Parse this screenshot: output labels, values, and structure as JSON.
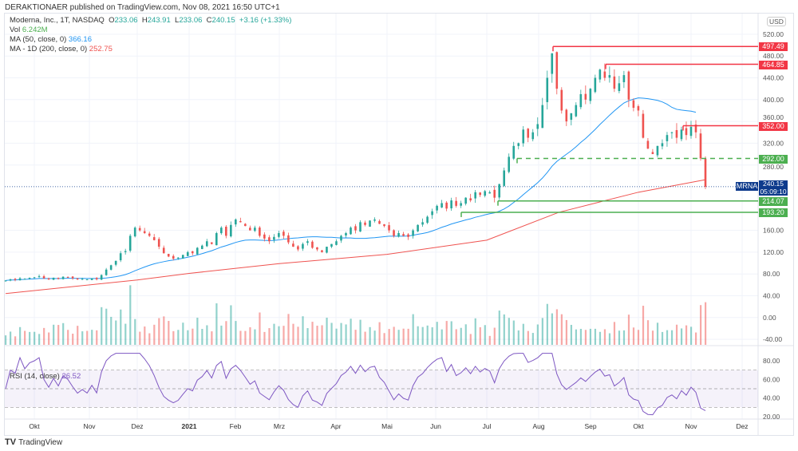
{
  "header": {
    "published": "DERAKTIONAER published on TradingView.com, Nov 08, 2021 16:50 UTC+1"
  },
  "legend": {
    "symbol": "Moderna, Inc., 1T, NASDAQ",
    "o_label": "O",
    "o": "233.06",
    "h_label": "H",
    "h": "243.91",
    "l_label": "L",
    "l": "233.06",
    "c_label": "C",
    "c": "240.15",
    "chg": "+3.16 (+1.33%)",
    "vol_label": "Vol",
    "vol": "6.242M",
    "ma50_label": "MA (50, close, 0)",
    "ma50": "366.16",
    "ma200_label": "MA - 1D (200, close, 0)",
    "ma200": "252.75",
    "rsi_label": "RSI (14, close)",
    "rsi": "26.52"
  },
  "currency": "USD",
  "symbol_tag": "MRNA",
  "last_price": "240.15",
  "countdown": "05:09:10",
  "footer": {
    "brand": "TradingView"
  },
  "colors": {
    "up": "#26a69a",
    "down": "#ef5350",
    "ma50": "#2196f3",
    "ma200": "#ef5350",
    "rsi": "#7e57c2",
    "support": "#4caf50",
    "resistance": "#f23645",
    "last": "#0d3a8c"
  },
  "chart_data": {
    "type": "candlestick",
    "price_ticks": [
      "520.00",
      "480.00",
      "440.00",
      "400.00",
      "360.00",
      "320.00",
      "280.00",
      "160.00",
      "120.00",
      "80.00",
      "40.00",
      "0.00",
      "-40.00"
    ],
    "price_tick_values": [
      520,
      480,
      440,
      400,
      360,
      320,
      280,
      160,
      120,
      80,
      40,
      0,
      -40
    ],
    "rsi_ticks": [
      "80.00",
      "60.00",
      "40.00",
      "20.00"
    ],
    "rsi_tick_values": [
      80,
      60,
      40,
      20
    ],
    "x_ticks": [
      {
        "label": "Okt",
        "bold": false
      },
      {
        "label": "Nov",
        "bold": false
      },
      {
        "label": "Dez",
        "bold": false
      },
      {
        "label": "2021",
        "bold": true
      },
      {
        "label": "Feb",
        "bold": false
      },
      {
        "label": "Mrz",
        "bold": false
      },
      {
        "label": "Apr",
        "bold": false
      },
      {
        "label": "Mai",
        "bold": false
      },
      {
        "label": "Jun",
        "bold": false
      },
      {
        "label": "Jul",
        "bold": false
      },
      {
        "label": "Aug",
        "bold": false
      },
      {
        "label": "Sep",
        "bold": false
      },
      {
        "label": "Okt",
        "bold": false
      },
      {
        "label": "Nov",
        "bold": false
      },
      {
        "label": "Dez",
        "bold": false
      }
    ],
    "closes": [
      68,
      70,
      69,
      72,
      71,
      73,
      74,
      76,
      72,
      70,
      73,
      71,
      75,
      74,
      72,
      70,
      71,
      70,
      72,
      70,
      78,
      88,
      96,
      104,
      118,
      122,
      150,
      165,
      160,
      155,
      150,
      142,
      130,
      118,
      112,
      108,
      110,
      115,
      120,
      118,
      128,
      132,
      140,
      135,
      155,
      165,
      150,
      170,
      180,
      175,
      168,
      160,
      165,
      150,
      145,
      140,
      148,
      155,
      150,
      138,
      130,
      125,
      135,
      140,
      128,
      125,
      120,
      130,
      135,
      140,
      150,
      155,
      165,
      160,
      175,
      170,
      178,
      180,
      172,
      168,
      160,
      150,
      155,
      150,
      148,
      160,
      170,
      175,
      185,
      195,
      205,
      210,
      200,
      215,
      205,
      210,
      220,
      215,
      230,
      225,
      232,
      230,
      220,
      245,
      270,
      295,
      315,
      320,
      345,
      330,
      340,
      355,
      390,
      440,
      485,
      420,
      380,
      360,
      375,
      390,
      410,
      400,
      420,
      440,
      455,
      440,
      445,
      420,
      430,
      445,
      400,
      385,
      380,
      330,
      310,
      300,
      315,
      320,
      335,
      340,
      330,
      345,
      335,
      350,
      340,
      292,
      240
    ],
    "ma200_anchors": [
      44,
      69,
      81,
      99,
      116,
      142,
      193,
      230,
      253
    ],
    "levels": [
      {
        "value": 497.49,
        "label": "497.49",
        "kind": "resistance",
        "style": "solid"
      },
      {
        "value": 464.85,
        "label": "464.85",
        "kind": "resistance",
        "style": "solid"
      },
      {
        "value": 352.0,
        "label": "352.00",
        "kind": "resistance",
        "style": "solid"
      },
      {
        "value": 292.0,
        "label": "292.00",
        "kind": "support",
        "style": "dashed"
      },
      {
        "value": 214.07,
        "label": "214.07",
        "kind": "support",
        "style": "solid"
      },
      {
        "value": 193.2,
        "label": "193.20",
        "kind": "support",
        "style": "solid"
      }
    ],
    "rsi_bands": [
      70,
      50,
      30
    ]
  }
}
